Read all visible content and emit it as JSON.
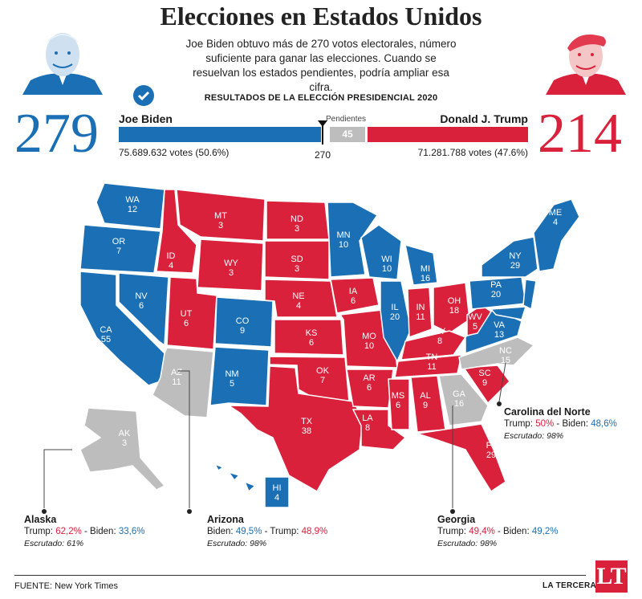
{
  "header": {
    "title": "Elecciones en Estados Unidos",
    "subtitle": "Joe Biden obtuvo más de 270 votos electorales, número suficiente para ganar las elecciones. Cuando se resuelvan los estados pendientes, podría ampliar esa cifra."
  },
  "results": {
    "title": "RESULTADOS DE LA ELECCIÓN PRESIDENCIAL 2020",
    "biden": {
      "name": "Joe Biden",
      "ev": "279",
      "votes": "75.689.632 votes (50.6%)"
    },
    "trump": {
      "name": "Donald J. Trump",
      "ev": "214",
      "votes": "71.281.788 votes (47.6%)"
    },
    "pending_label": "Pendientes",
    "pending_value": "45",
    "threshold": "270"
  },
  "colors": {
    "dem": "#1a6fb5",
    "rep": "#d9213c",
    "pending": "#bdbdbd"
  },
  "states": [
    {
      "abbr": "WA",
      "ev": "12",
      "party": "dem"
    },
    {
      "abbr": "OR",
      "ev": "7",
      "party": "dem"
    },
    {
      "abbr": "CA",
      "ev": "55",
      "party": "dem"
    },
    {
      "abbr": "NV",
      "ev": "6",
      "party": "dem"
    },
    {
      "abbr": "ID",
      "ev": "4",
      "party": "rep"
    },
    {
      "abbr": "MT",
      "ev": "3",
      "party": "rep"
    },
    {
      "abbr": "WY",
      "ev": "3",
      "party": "rep"
    },
    {
      "abbr": "UT",
      "ev": "6",
      "party": "rep"
    },
    {
      "abbr": "AZ",
      "ev": "11",
      "party": "pending"
    },
    {
      "abbr": "CO",
      "ev": "9",
      "party": "dem"
    },
    {
      "abbr": "NM",
      "ev": "5",
      "party": "dem"
    },
    {
      "abbr": "ND",
      "ev": "3",
      "party": "rep"
    },
    {
      "abbr": "SD",
      "ev": "3",
      "party": "rep"
    },
    {
      "abbr": "NE",
      "ev": "4",
      "party": "rep"
    },
    {
      "abbr": "KS",
      "ev": "6",
      "party": "rep"
    },
    {
      "abbr": "OK",
      "ev": "7",
      "party": "rep"
    },
    {
      "abbr": "TX",
      "ev": "38",
      "party": "rep"
    },
    {
      "abbr": "MN",
      "ev": "10",
      "party": "dem"
    },
    {
      "abbr": "IA",
      "ev": "6",
      "party": "rep"
    },
    {
      "abbr": "MO",
      "ev": "10",
      "party": "rep"
    },
    {
      "abbr": "AR",
      "ev": "6",
      "party": "rep"
    },
    {
      "abbr": "LA",
      "ev": "8",
      "party": "rep"
    },
    {
      "abbr": "WI",
      "ev": "10",
      "party": "dem"
    },
    {
      "abbr": "IL",
      "ev": "20",
      "party": "dem"
    },
    {
      "abbr": "MI",
      "ev": "16",
      "party": "dem"
    },
    {
      "abbr": "IN",
      "ev": "11",
      "party": "rep"
    },
    {
      "abbr": "OH",
      "ev": "18",
      "party": "rep"
    },
    {
      "abbr": "KY",
      "ev": "8",
      "party": "rep"
    },
    {
      "abbr": "TN",
      "ev": "11",
      "party": "rep"
    },
    {
      "abbr": "MS",
      "ev": "6",
      "party": "rep"
    },
    {
      "abbr": "AL",
      "ev": "9",
      "party": "rep"
    },
    {
      "abbr": "GA",
      "ev": "16",
      "party": "pending"
    },
    {
      "abbr": "FL",
      "ev": "29",
      "party": "rep"
    },
    {
      "abbr": "SC",
      "ev": "9",
      "party": "rep"
    },
    {
      "abbr": "NC",
      "ev": "15",
      "party": "pending"
    },
    {
      "abbr": "VA",
      "ev": "13",
      "party": "dem"
    },
    {
      "abbr": "WV",
      "ev": "5",
      "party": "rep"
    },
    {
      "abbr": "PA",
      "ev": "20",
      "party": "dem"
    },
    {
      "abbr": "NY",
      "ev": "29",
      "party": "dem"
    },
    {
      "abbr": "ME",
      "ev": "4",
      "party": "dem"
    },
    {
      "abbr": "AK",
      "ev": "3",
      "party": "pending"
    },
    {
      "abbr": "HI",
      "ev": "4",
      "party": "dem"
    }
  ],
  "annotations": {
    "alaska": {
      "name": "Alaska",
      "lead": "Trump: ",
      "lead_pct": "62,2%",
      "mid": " - Biden: ",
      "trail_pct": "33,6%",
      "count": "Escrutado: 61%"
    },
    "arizona": {
      "name": "Arizona",
      "lead": "Biden: ",
      "lead_pct": "49,5%",
      "mid": " - Trump: ",
      "trail_pct": "48,9%",
      "count": "Escrutado: 98%"
    },
    "georgia": {
      "name": "Georgia",
      "lead": "Trump: ",
      "lead_pct": "49,4%",
      "mid": " - Biden: ",
      "trail_pct": "49,2%",
      "count": "Escrutado: 98%"
    },
    "nc": {
      "name": "Carolina del Norte",
      "lead": "Trump: ",
      "lead_pct": "50%",
      "mid": " - Biden: ",
      "trail_pct": "48,6%",
      "count": "Escrutado: 98%"
    }
  },
  "footer": {
    "source": "FUENTE: New York Times",
    "brand": "LA TERCERA",
    "logo": "LT"
  }
}
